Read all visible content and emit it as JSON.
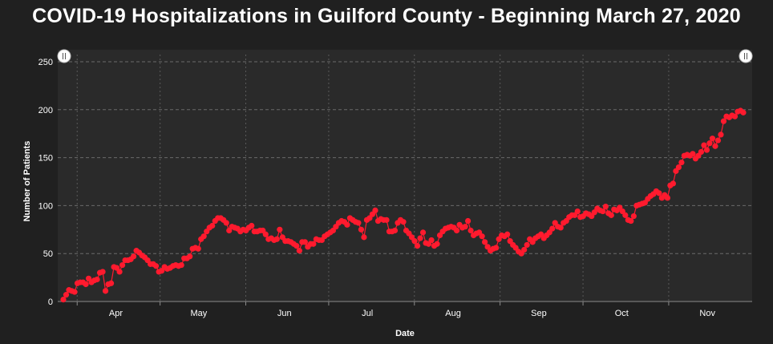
{
  "chart_data": {
    "type": "line",
    "title": "COVID-19 Hospitalizations in Guilford County - Beginning March 27, 2020",
    "xlabel": "Date",
    "ylabel": "Number of Patients",
    "x_tick_labels": [
      "Apr",
      "May",
      "Jun",
      "Jul",
      "Aug",
      "Sep",
      "Oct",
      "Nov"
    ],
    "x_start": "2020-03-27",
    "x_end": "2020-11-28",
    "ylim": [
      0,
      250
    ],
    "y_ticks": [
      0,
      50,
      100,
      150,
      200,
      250
    ],
    "grid": true,
    "series_color": "#ff1a2e",
    "series": [
      {
        "values": [
          2,
          7,
          12,
          11,
          10,
          19,
          20,
          20,
          18,
          24,
          20,
          22,
          23,
          30,
          31,
          11,
          18,
          19,
          36,
          35,
          31,
          38,
          43,
          43,
          44,
          47,
          53,
          51,
          48,
          46,
          43,
          39,
          39,
          37,
          31,
          32,
          36,
          34,
          35,
          37,
          38,
          37,
          38,
          45,
          45,
          47,
          55,
          56,
          55,
          65,
          68,
          73,
          77,
          79,
          84,
          87,
          87,
          85,
          82,
          74,
          78,
          77,
          76,
          73,
          75,
          74,
          77,
          79,
          73,
          73,
          74,
          74,
          70,
          65,
          66,
          64,
          65,
          75,
          67,
          63,
          63,
          62,
          60,
          58,
          53,
          62,
          62,
          57,
          60,
          60,
          65,
          64,
          64,
          68,
          70,
          72,
          74,
          78,
          82,
          84,
          83,
          80,
          87,
          85,
          83,
          82,
          75,
          67,
          85,
          87,
          91,
          95,
          84,
          86,
          85,
          85,
          73,
          73,
          74,
          82,
          85,
          83,
          74,
          71,
          67,
          63,
          58,
          66,
          72,
          61,
          60,
          64,
          58,
          60,
          69,
          73,
          76,
          77,
          78,
          77,
          74,
          80,
          77,
          78,
          84,
          74,
          69,
          71,
          72,
          68,
          62,
          57,
          53,
          55,
          56,
          65,
          69,
          68,
          70,
          63,
          59,
          56,
          52,
          50,
          54,
          59,
          65,
          62,
          66,
          68,
          70,
          66,
          69,
          72,
          76,
          82,
          78,
          77,
          82,
          84,
          88,
          90,
          90,
          94,
          88,
          89,
          92,
          91,
          89,
          93,
          97,
          95,
          94,
          99,
          92,
          90,
          96,
          95,
          98,
          94,
          90,
          85,
          84,
          89,
          100,
          101,
          102,
          103,
          107,
          110,
          112,
          115,
          113,
          108,
          111,
          108,
          121,
          123,
          136,
          140,
          145,
          152,
          153,
          152,
          154,
          149,
          152,
          156,
          163,
          158,
          165,
          170,
          162,
          168,
          174,
          188,
          193,
          192,
          194,
          193,
          198,
          199,
          197
        ]
      }
    ]
  }
}
